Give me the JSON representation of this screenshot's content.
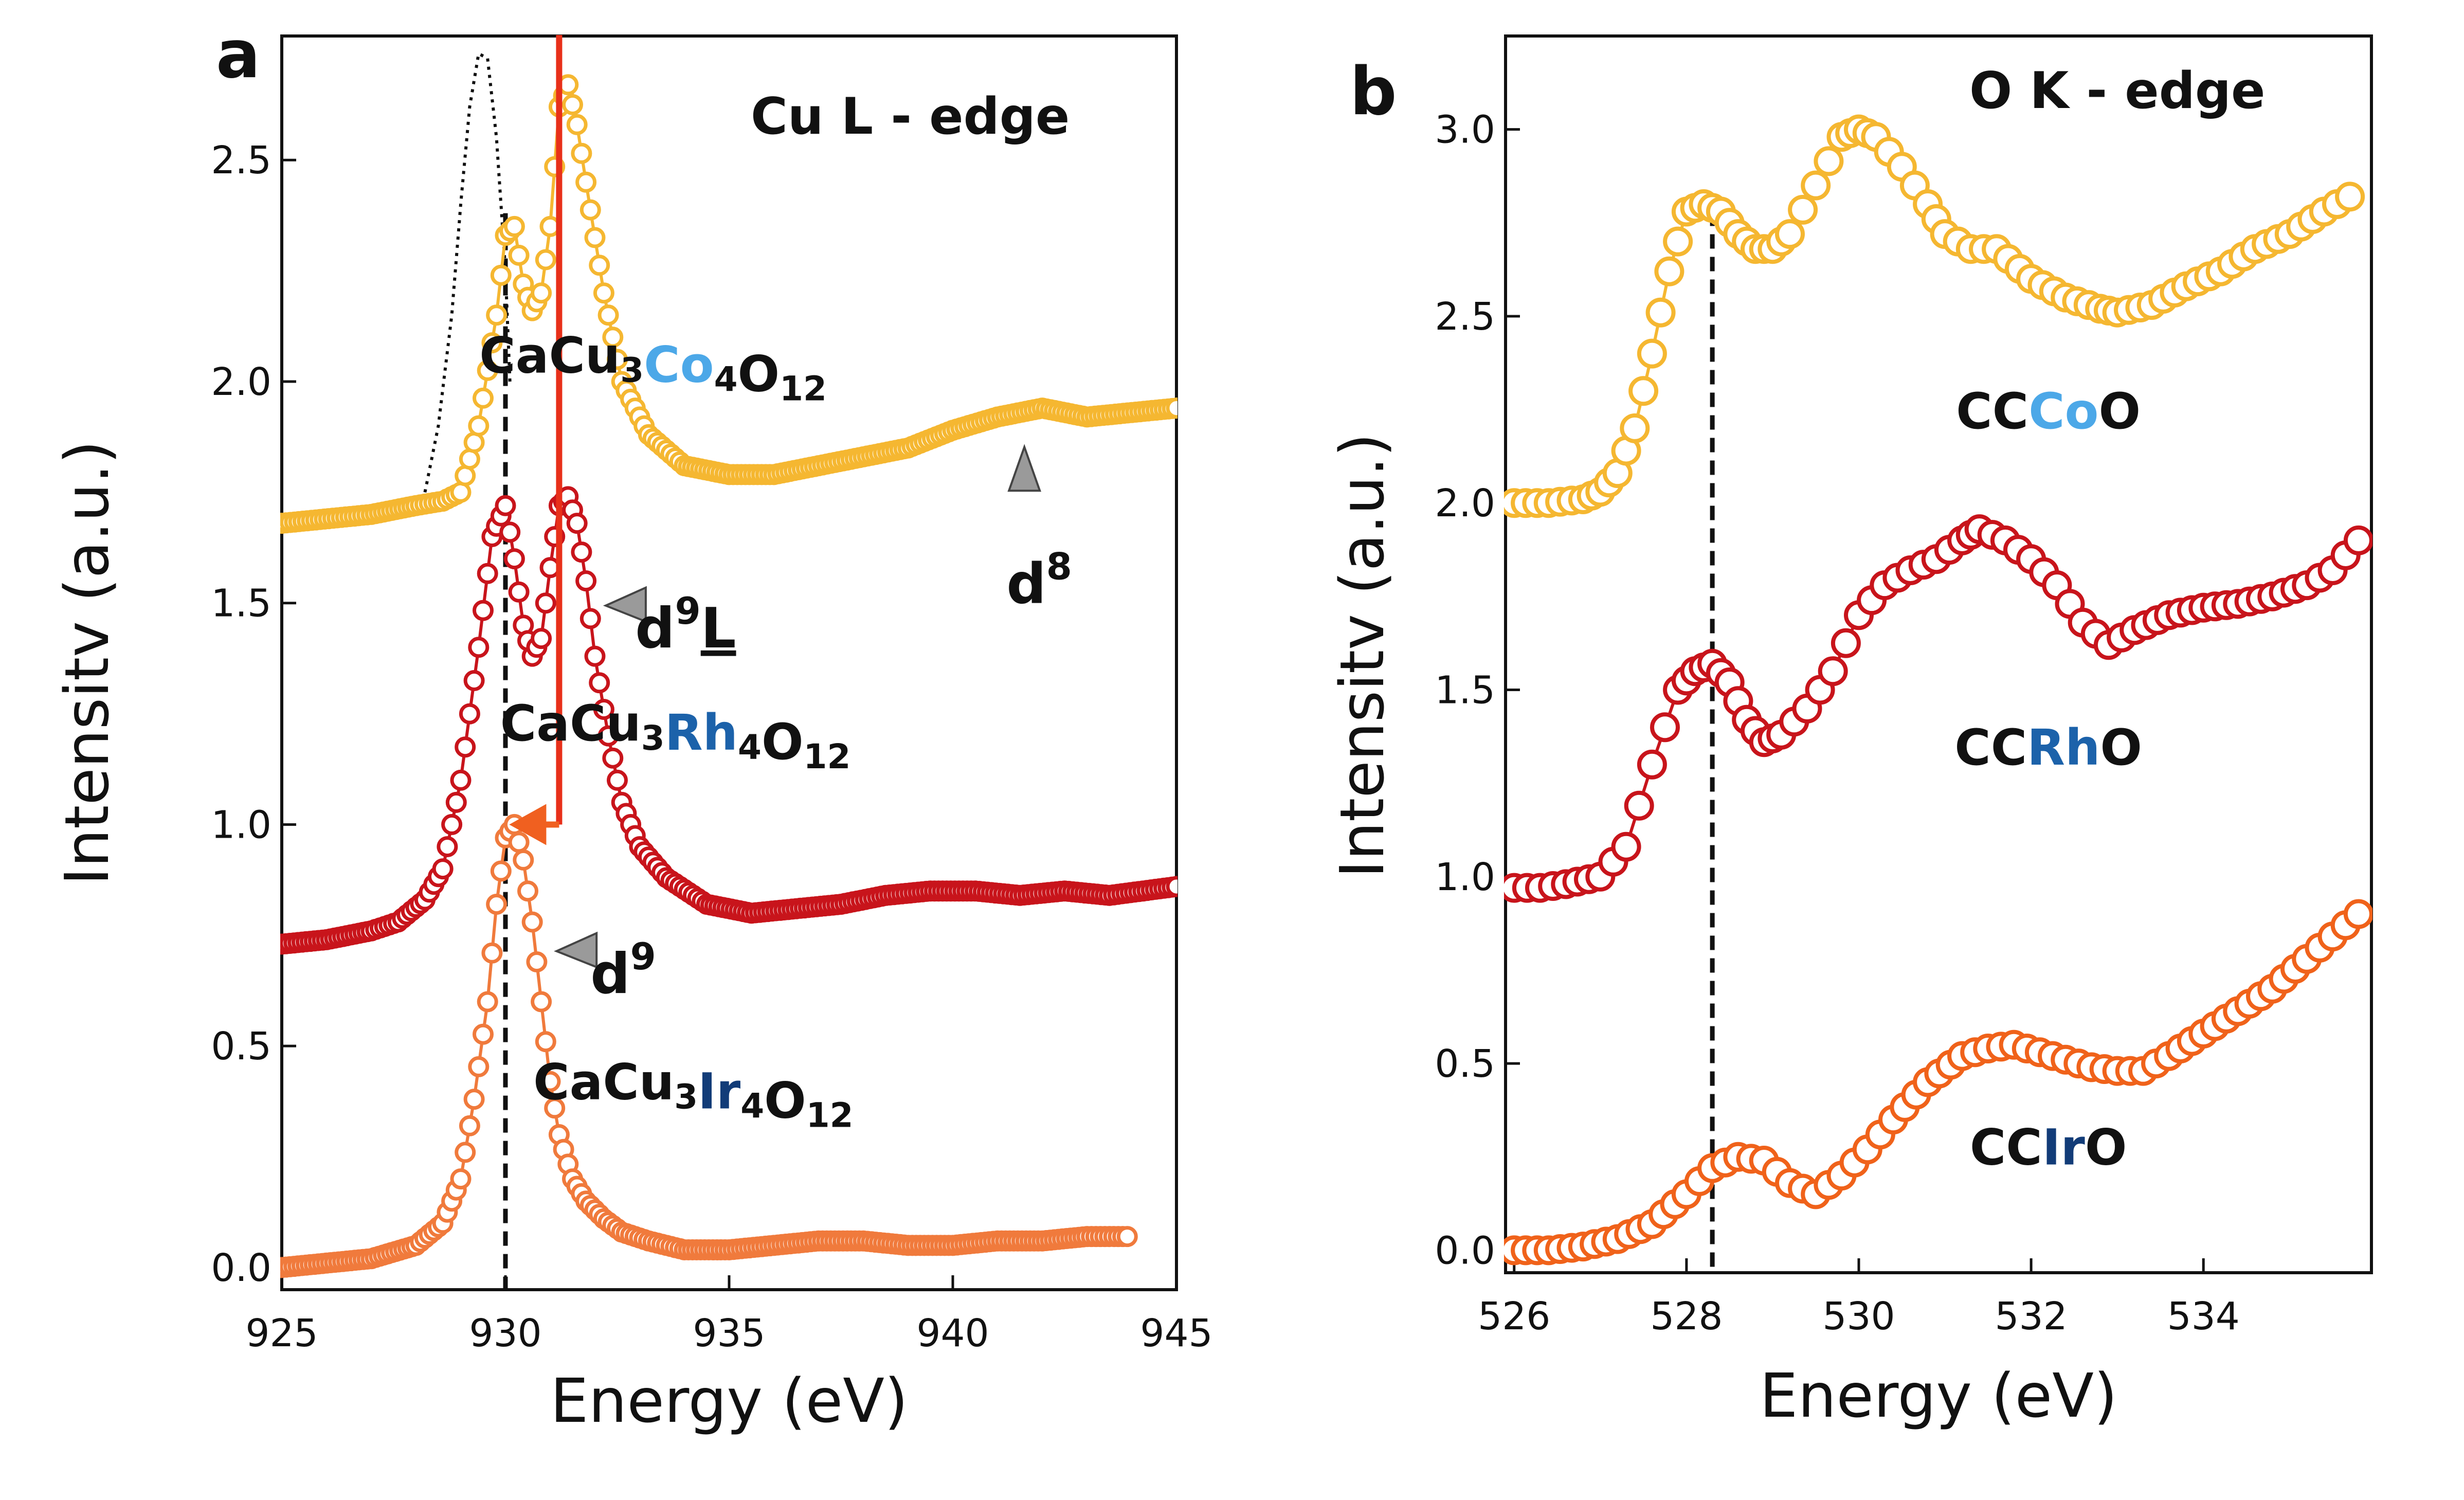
{
  "colors": {
    "yellow": "#F5B731",
    "red": "#C8141B",
    "orange": "#F07A3C",
    "orange_b": "#F0621A",
    "cyan": "#4CA8E8",
    "blue": "#1C62AA",
    "navy": "#123C78",
    "arrow_red": "#E8301A",
    "arrow_orange": "#F06020",
    "marker_gray": "#9A9A9A",
    "black": "#111111"
  },
  "chart_data": [
    {
      "panel": "a",
      "type": "scatter",
      "title": "Cu L - edge",
      "xlabel": "Energy (eV)",
      "ylabel": "Intensitv (a.u.)",
      "xlim": [
        925,
        945
      ],
      "ylim": [
        -0.05,
        2.78
      ],
      "xticks": [
        "925",
        "930",
        "935",
        "940",
        "945"
      ],
      "yticks": [
        "0.0",
        "0.5",
        "1.0",
        "1.5",
        "2.0",
        "2.5"
      ],
      "series": [
        {
          "name": "CaCu3Co4O12",
          "color": "yellow",
          "x": [
            925.0,
            927.0,
            928.0,
            928.6,
            929.0,
            929.4,
            929.8,
            930.0,
            930.2,
            930.4,
            930.6,
            930.8,
            931.0,
            931.2,
            931.4,
            931.6,
            931.8,
            932.2,
            932.6,
            933.2,
            934.0,
            935.0,
            936.0,
            937.0,
            938.0,
            939.0,
            940.0,
            941.0,
            942.0,
            943.0,
            944.0,
            945.0
          ],
          "y": [
            1.68,
            1.7,
            1.72,
            1.73,
            1.75,
            1.9,
            2.15,
            2.33,
            2.35,
            2.22,
            2.16,
            2.2,
            2.35,
            2.62,
            2.67,
            2.58,
            2.45,
            2.2,
            2.0,
            1.88,
            1.81,
            1.79,
            1.79,
            1.81,
            1.83,
            1.85,
            1.89,
            1.92,
            1.94,
            1.92,
            1.93,
            1.94
          ]
        },
        {
          "name": "CaCu3Rh4O12",
          "color": "red",
          "x": [
            925.0,
            926.0,
            927.0,
            927.6,
            928.2,
            928.6,
            929.0,
            929.4,
            929.7,
            930.0,
            930.2,
            930.4,
            930.6,
            930.8,
            931.0,
            931.2,
            931.4,
            931.6,
            931.8,
            932.0,
            932.3,
            932.6,
            933.0,
            933.6,
            934.5,
            935.5,
            936.5,
            937.5,
            938.5,
            939.5,
            940.5,
            941.5,
            942.5,
            943.5,
            945.0
          ],
          "y": [
            0.73,
            0.74,
            0.76,
            0.78,
            0.83,
            0.9,
            1.1,
            1.4,
            1.65,
            1.72,
            1.6,
            1.45,
            1.38,
            1.42,
            1.58,
            1.72,
            1.74,
            1.68,
            1.55,
            1.38,
            1.2,
            1.05,
            0.95,
            0.88,
            0.82,
            0.8,
            0.81,
            0.82,
            0.84,
            0.85,
            0.85,
            0.84,
            0.85,
            0.84,
            0.86
          ]
        },
        {
          "name": "CaCu3Ir4O12",
          "color": "orange",
          "x": [
            925.0,
            926.0,
            927.0,
            928.0,
            928.6,
            929.0,
            929.3,
            929.6,
            929.8,
            930.0,
            930.2,
            930.4,
            930.6,
            930.8,
            931.0,
            931.2,
            931.5,
            931.8,
            932.2,
            932.6,
            933.2,
            934.0,
            935.0,
            936.0,
            937.0,
            938.0,
            939.0,
            940.0,
            941.0,
            942.0,
            943.0,
            943.9
          ],
          "y": [
            0.0,
            0.01,
            0.02,
            0.05,
            0.1,
            0.2,
            0.38,
            0.6,
            0.82,
            0.97,
            1.0,
            0.92,
            0.78,
            0.6,
            0.42,
            0.3,
            0.2,
            0.15,
            0.11,
            0.08,
            0.06,
            0.04,
            0.04,
            0.05,
            0.06,
            0.06,
            0.05,
            0.05,
            0.06,
            0.06,
            0.07,
            0.07
          ]
        }
      ],
      "reference_curve": {
        "style": "dotted",
        "x": [
          928.2,
          928.5,
          928.8,
          929.0,
          929.2,
          929.4,
          929.6,
          929.8,
          930.0,
          930.1
        ],
        "y": [
          1.75,
          1.9,
          2.15,
          2.4,
          2.62,
          2.74,
          2.73,
          2.55,
          2.25,
          2.0
        ]
      },
      "dashed_line_x": 930.0,
      "labels": [
        {
          "parts": [
            [
              "CaCu",
              "black"
            ],
            [
              "3",
              "black",
              "sub"
            ],
            [
              "Co",
              "cyan"
            ],
            [
              "4",
              "black",
              "sub"
            ],
            [
              "O",
              "black"
            ],
            [
              "12",
              "black",
              "sub"
            ]
          ],
          "x": 933.3,
          "y": 2.02
        },
        {
          "parts": [
            [
              "CaCu",
              "black"
            ],
            [
              "3",
              "black",
              "sub"
            ],
            [
              "Rh",
              "blue"
            ],
            [
              "4",
              "black",
              "sub"
            ],
            [
              "O",
              "black"
            ],
            [
              "12",
              "black",
              "sub"
            ]
          ],
          "x": 933.8,
          "y": 1.19
        },
        {
          "parts": [
            [
              "CaCu",
              "black"
            ],
            [
              "3",
              "black",
              "sub"
            ],
            [
              "Ir",
              "navy"
            ],
            [
              "4",
              "black",
              "sub"
            ],
            [
              "O",
              "black"
            ],
            [
              "12",
              "black",
              "sub"
            ]
          ],
          "x": 934.2,
          "y": 0.38
        }
      ],
      "annotations": [
        {
          "marker": "up",
          "mx": 941.6,
          "my": 1.8,
          "base": "d",
          "sup": "8",
          "underline": "",
          "tx": 941.2,
          "ty": 1.5
        },
        {
          "marker": "left",
          "mx": 932.7,
          "my": 1.5,
          "base": "d",
          "sup": "9",
          "underline": "L",
          "tx": 932.9,
          "ty": 1.4
        },
        {
          "marker": "left",
          "mx": 931.6,
          "my": 0.72,
          "base": "d",
          "sup": "9",
          "underline": "",
          "tx": 931.9,
          "ty": 0.62
        }
      ],
      "arrow": {
        "x": 931.2,
        "y_top": 2.8,
        "y_bottom": 1.0,
        "x_end": 930.2
      }
    },
    {
      "panel": "b",
      "type": "scatter",
      "title": "O K - edge",
      "xlabel": "Energy (eV)",
      "ylabel": "Intensitv (a.u.)",
      "xlim": [
        525.9,
        535.95
      ],
      "ylim": [
        -0.06,
        3.25
      ],
      "xticks": [
        "526",
        "528",
        "530",
        "532",
        "534"
      ],
      "yticks": [
        "0.0",
        "0.5",
        "1.0",
        "1.5",
        "2.0",
        "2.5",
        "3.0"
      ],
      "series": [
        {
          "name": "CCCoO",
          "color": "yellow",
          "x": [
            526.0,
            526.4,
            526.8,
            527.0,
            527.2,
            527.4,
            527.6,
            527.8,
            528.0,
            528.2,
            528.4,
            528.6,
            528.8,
            529.0,
            529.2,
            529.5,
            529.8,
            530.0,
            530.2,
            530.5,
            530.8,
            531.0,
            531.3,
            531.6,
            532.0,
            532.4,
            532.8,
            533.0,
            533.4,
            533.8,
            534.2,
            534.6,
            535.0,
            535.4,
            535.7
          ],
          "y": [
            2.0,
            2.0,
            2.01,
            2.03,
            2.08,
            2.2,
            2.4,
            2.62,
            2.78,
            2.8,
            2.78,
            2.72,
            2.68,
            2.68,
            2.72,
            2.85,
            2.98,
            3.0,
            2.98,
            2.9,
            2.8,
            2.72,
            2.68,
            2.68,
            2.6,
            2.55,
            2.52,
            2.51,
            2.53,
            2.58,
            2.62,
            2.68,
            2.72,
            2.78,
            2.82
          ]
        },
        {
          "name": "CCRhO",
          "color": "red",
          "x": [
            526.0,
            526.3,
            526.6,
            527.0,
            527.3,
            527.6,
            527.9,
            528.1,
            528.3,
            528.5,
            528.7,
            528.9,
            529.1,
            529.4,
            529.7,
            530.0,
            530.3,
            530.6,
            530.9,
            531.2,
            531.4,
            531.7,
            532.0,
            532.3,
            532.6,
            532.9,
            533.2,
            533.6,
            534.0,
            534.4,
            534.8,
            535.2,
            535.5,
            535.8
          ],
          "y": [
            0.97,
            0.97,
            0.98,
            1.0,
            1.08,
            1.3,
            1.5,
            1.55,
            1.57,
            1.52,
            1.42,
            1.36,
            1.38,
            1.45,
            1.55,
            1.7,
            1.78,
            1.82,
            1.85,
            1.9,
            1.93,
            1.9,
            1.85,
            1.78,
            1.68,
            1.62,
            1.66,
            1.7,
            1.72,
            1.73,
            1.75,
            1.78,
            1.82,
            1.9
          ]
        },
        {
          "name": "CCIrO",
          "color": "orange_b",
          "x": [
            526.0,
            526.4,
            526.8,
            527.2,
            527.6,
            528.0,
            528.3,
            528.6,
            528.9,
            529.2,
            529.5,
            529.8,
            530.1,
            530.4,
            530.8,
            531.2,
            531.5,
            531.8,
            532.1,
            532.4,
            532.7,
            533.0,
            533.3,
            533.6,
            534.0,
            534.4,
            534.8,
            535.2,
            535.5,
            535.8
          ],
          "y": [
            0.0,
            0.0,
            0.01,
            0.03,
            0.07,
            0.15,
            0.22,
            0.25,
            0.24,
            0.18,
            0.15,
            0.2,
            0.27,
            0.35,
            0.45,
            0.52,
            0.54,
            0.55,
            0.53,
            0.51,
            0.49,
            0.48,
            0.48,
            0.52,
            0.58,
            0.64,
            0.7,
            0.78,
            0.84,
            0.9
          ]
        }
      ],
      "dashed_line_x": 528.3,
      "labels": [
        {
          "parts": [
            [
              "CC",
              "black"
            ],
            [
              "Co",
              "cyan"
            ],
            [
              "O",
              "black"
            ]
          ],
          "x": 532.2,
          "y": 2.2
        },
        {
          "parts": [
            [
              "CC",
              "black"
            ],
            [
              "Rh",
              "blue"
            ],
            [
              "O",
              "black"
            ]
          ],
          "x": 532.2,
          "y": 1.3
        },
        {
          "parts": [
            [
              "CC",
              "black"
            ],
            [
              "Ir",
              "navy"
            ],
            [
              "O",
              "black"
            ]
          ],
          "x": 532.2,
          "y": 0.23
        }
      ]
    }
  ]
}
